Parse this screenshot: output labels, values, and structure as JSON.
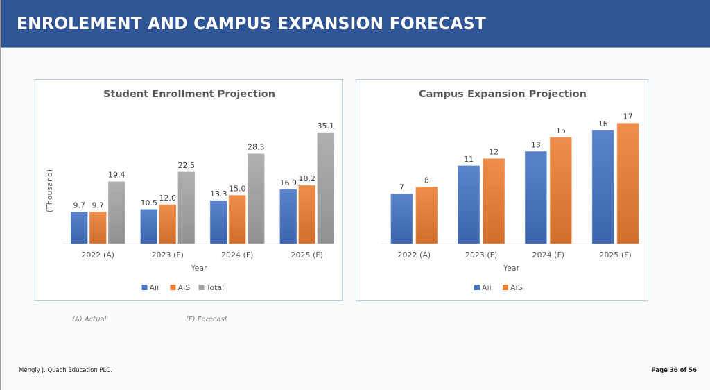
{
  "header": {
    "title": "ENROLEMENT AND CAMPUS EXPANSION FORECAST"
  },
  "colors": {
    "header_bg": "#2f5597",
    "aii": "#4472c4",
    "ais": "#ed7d31",
    "total": "#a5a5a5",
    "chart_border": "#b4c7e7"
  },
  "chart_data": [
    {
      "type": "bar",
      "title": "Student Enrollment Projection",
      "xlabel": "Year",
      "ylabel": "(Thousand)",
      "categories": [
        "2022 (A)",
        "2023 (F)",
        "2024 (F)",
        "2025 (F)"
      ],
      "series": [
        {
          "name": "Aii",
          "color": "#4472c4",
          "values": [
            9.7,
            10.5,
            13.3,
            16.9
          ],
          "labels": [
            "9.7",
            "10.5",
            "13.3",
            "16.9"
          ]
        },
        {
          "name": "AIS",
          "color": "#ed7d31",
          "values": [
            9.7,
            12.0,
            15.0,
            18.2
          ],
          "labels": [
            "9.7",
            "12.0",
            "15.0",
            "18.2"
          ]
        },
        {
          "name": "Total",
          "color": "#a5a5a5",
          "values": [
            19.4,
            22.5,
            28.3,
            35.1
          ],
          "labels": [
            "19.4",
            "22.5",
            "28.3",
            "35.1"
          ]
        }
      ],
      "legend": "bottom",
      "grid": false,
      "ylim": [
        0,
        36
      ]
    },
    {
      "type": "bar",
      "title": "Campus Expansion Projection",
      "xlabel": "Year",
      "ylabel": "",
      "categories": [
        "2022 (A)",
        "2023 (F)",
        "2024 (F)",
        "2025 (F)"
      ],
      "series": [
        {
          "name": "Aii",
          "color": "#4472c4",
          "values": [
            7,
            11,
            13,
            16
          ],
          "labels": [
            "7",
            "11",
            "13",
            "16"
          ]
        },
        {
          "name": "AIS",
          "color": "#ed7d31",
          "values": [
            8,
            12,
            15,
            17
          ],
          "labels": [
            "8",
            "12",
            "15",
            "17"
          ]
        }
      ],
      "legend": "bottom",
      "grid": false,
      "ylim": [
        0,
        18
      ]
    }
  ],
  "notes": {
    "actual": "(A) Actual",
    "forecast": "(F) Forecast"
  },
  "footer": {
    "company": "Mengly J. Quach Education PLC.",
    "page": "Page 36 of 56"
  }
}
